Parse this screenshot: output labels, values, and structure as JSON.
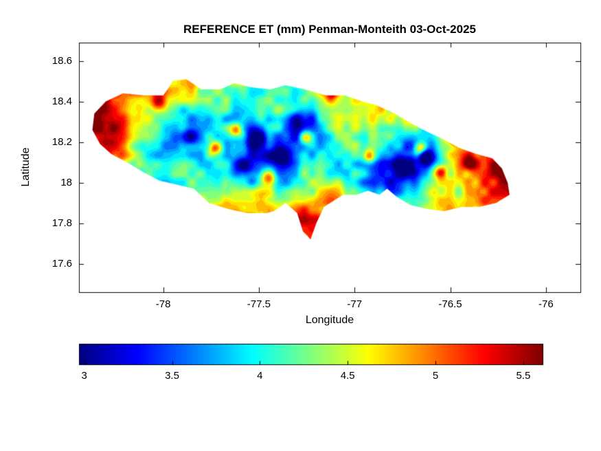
{
  "chart_data": {
    "type": "heatmap",
    "title": "REFERENCE ET (mm) Penman-Monteith 03-Oct-2025",
    "xlabel": "Longitude",
    "ylabel": "Latitude",
    "xlim": [
      -78.44,
      -75.82
    ],
    "ylim": [
      17.46,
      18.69
    ],
    "clim": [
      2.97,
      5.61
    ],
    "colormap": "jet",
    "background": "#ffffff",
    "axis_color": "#000000",
    "x_ticks": [
      -78,
      -77.5,
      -77,
      -76.5,
      -76
    ],
    "x_tick_labels": [
      "-78",
      "-77.5",
      "-77",
      "-76.5",
      "-76"
    ],
    "y_ticks": [
      17.6,
      17.8,
      18,
      18.2,
      18.4,
      18.6
    ],
    "y_tick_labels": [
      "17.6",
      "17.8",
      "18",
      "18.2",
      "18.4",
      "18.6"
    ],
    "colorbar": {
      "orientation": "horizontal",
      "ticks": [
        3,
        3.5,
        4,
        4.5,
        5,
        5.5
      ],
      "tick_labels": [
        "3",
        "3.5",
        "4",
        "4.5",
        "5",
        "5.5"
      ]
    },
    "grid": {
      "lon": [
        -78.4,
        -78.3,
        -78.2,
        -78.1,
        -78.0,
        -77.9,
        -77.8,
        -77.7,
        -77.6,
        -77.5,
        -77.4,
        -77.3,
        -77.2,
        -77.1,
        -77.0,
        -76.9,
        -76.8,
        -76.7,
        -76.6,
        -76.5,
        -76.4,
        -76.3,
        -76.2
      ],
      "lat": [
        18.5,
        18.4,
        18.3,
        18.2,
        18.1,
        18.0,
        17.9,
        17.8,
        17.7
      ],
      "values": [
        [
          4.6,
          4.7,
          4.8,
          4.8,
          4.7,
          4.6,
          4.5,
          4.4,
          4.3,
          4.4,
          4.5,
          4.4,
          4.5,
          4.6,
          4.7,
          4.8,
          4.9,
          5.0,
          4.9,
          4.8,
          4.8,
          4.9,
          5.0
        ],
        [
          5.2,
          5.3,
          5.0,
          4.8,
          4.5,
          4.2,
          4.1,
          4.2,
          4.0,
          4.1,
          4.2,
          4.1,
          4.3,
          4.4,
          4.5,
          4.6,
          4.8,
          5.0,
          4.6,
          4.5,
          4.9,
          5.0,
          5.1
        ],
        [
          5.4,
          5.5,
          5.2,
          4.6,
          4.2,
          3.9,
          3.7,
          3.8,
          3.6,
          3.7,
          3.9,
          3.6,
          3.8,
          4.1,
          4.3,
          4.4,
          4.5,
          4.3,
          4.2,
          4.6,
          5.0,
          5.2,
          5.3
        ],
        [
          5.3,
          5.4,
          5.0,
          4.4,
          4.0,
          3.7,
          3.5,
          3.6,
          3.4,
          3.5,
          3.6,
          3.4,
          3.7,
          4.0,
          4.2,
          4.0,
          3.6,
          3.3,
          3.6,
          4.4,
          5.0,
          5.3,
          5.4
        ],
        [
          5.0,
          4.9,
          4.6,
          4.2,
          3.9,
          3.8,
          3.7,
          3.9,
          3.6,
          3.5,
          3.4,
          3.6,
          3.9,
          4.1,
          4.0,
          3.4,
          3.1,
          3.0,
          3.4,
          4.2,
          4.9,
          5.3,
          5.5
        ],
        [
          4.7,
          4.6,
          4.4,
          4.2,
          4.1,
          4.0,
          4.1,
          4.2,
          4.0,
          3.8,
          3.7,
          4.0,
          4.3,
          4.4,
          4.2,
          3.6,
          3.3,
          3.5,
          4.0,
          4.4,
          4.8,
          5.2,
          5.4
        ],
        [
          4.6,
          4.5,
          4.4,
          4.4,
          4.3,
          4.4,
          4.5,
          4.7,
          4.8,
          4.7,
          4.6,
          4.8,
          4.9,
          4.7,
          4.5,
          4.2,
          4.0,
          4.2,
          4.4,
          4.6,
          4.9,
          5.1,
          5.2
        ],
        [
          4.6,
          4.6,
          4.6,
          4.6,
          4.6,
          4.7,
          4.8,
          4.9,
          5.0,
          5.0,
          4.9,
          5.1,
          5.0,
          4.8,
          4.7,
          4.6,
          4.5,
          4.6,
          4.7,
          4.8,
          4.9,
          5.0,
          5.1
        ],
        [
          4.7,
          4.7,
          4.7,
          4.7,
          4.8,
          4.8,
          4.9,
          5.0,
          5.1,
          5.2,
          5.1,
          5.2,
          5.1,
          5.0,
          4.9,
          4.8,
          4.7,
          4.8,
          4.8,
          4.9,
          5.0,
          5.0,
          5.1
        ]
      ]
    },
    "spots": [
      [
        -78.02,
        18.4,
        1.0,
        0.03
      ],
      [
        -77.62,
        18.26,
        1.3,
        0.025
      ],
      [
        -77.73,
        18.17,
        1.1,
        0.025
      ],
      [
        -77.45,
        18.03,
        1.4,
        0.03
      ],
      [
        -77.25,
        18.22,
        1.0,
        0.025
      ],
      [
        -76.92,
        18.13,
        1.3,
        0.025
      ],
      [
        -76.66,
        18.17,
        1.2,
        0.022
      ],
      [
        -76.55,
        18.05,
        1.2,
        0.022
      ],
      [
        -76.48,
        18.22,
        1.1,
        0.022
      ],
      [
        -77.12,
        18.44,
        0.9,
        0.025
      ],
      [
        -76.4,
        18.1,
        1.0,
        0.025
      ],
      [
        -77.52,
        18.22,
        -0.9,
        0.035
      ],
      [
        -77.38,
        18.13,
        -0.9,
        0.035
      ],
      [
        -76.73,
        18.07,
        -1.0,
        0.035
      ],
      [
        -76.62,
        18.12,
        -0.9,
        0.03
      ],
      [
        -77.58,
        18.08,
        -0.7,
        0.03
      ],
      [
        -77.86,
        18.23,
        -0.7,
        0.035
      ],
      [
        -77.3,
        18.3,
        -0.6,
        0.04
      ]
    ],
    "texture": {
      "fine_scale": 0.045,
      "fine_amp": 0.27,
      "coarse_scale": 0.13,
      "coarse_amp": 0.3,
      "quant_step": 0.1
    },
    "outline_lonlat": [
      [
        -78.37,
        18.26
      ],
      [
        -78.36,
        18.34
      ],
      [
        -78.3,
        18.4
      ],
      [
        -78.21,
        18.44
      ],
      [
        -78.1,
        18.43
      ],
      [
        -78.0,
        18.43
      ],
      [
        -77.97,
        18.47
      ],
      [
        -77.95,
        18.5
      ],
      [
        -77.88,
        18.51
      ],
      [
        -77.8,
        18.46
      ],
      [
        -77.7,
        18.46
      ],
      [
        -77.63,
        18.49
      ],
      [
        -77.54,
        18.47
      ],
      [
        -77.44,
        18.46
      ],
      [
        -77.36,
        18.48
      ],
      [
        -77.26,
        18.46
      ],
      [
        -77.15,
        18.43
      ],
      [
        -77.05,
        18.43
      ],
      [
        -76.96,
        18.4
      ],
      [
        -76.88,
        18.38
      ],
      [
        -76.79,
        18.34
      ],
      [
        -76.72,
        18.3
      ],
      [
        -76.64,
        18.26
      ],
      [
        -76.55,
        18.22
      ],
      [
        -76.45,
        18.17
      ],
      [
        -76.36,
        18.14
      ],
      [
        -76.28,
        18.12
      ],
      [
        -76.23,
        18.07
      ],
      [
        -76.2,
        18.0
      ],
      [
        -76.19,
        17.94
      ],
      [
        -76.26,
        17.9
      ],
      [
        -76.35,
        17.88
      ],
      [
        -76.44,
        17.88
      ],
      [
        -76.53,
        17.86
      ],
      [
        -76.62,
        17.87
      ],
      [
        -76.71,
        17.89
      ],
      [
        -76.78,
        17.93
      ],
      [
        -76.83,
        17.97
      ],
      [
        -76.87,
        17.94
      ],
      [
        -76.93,
        17.96
      ],
      [
        -76.99,
        17.94
      ],
      [
        -77.06,
        17.94
      ],
      [
        -77.16,
        17.88
      ],
      [
        -77.2,
        17.8
      ],
      [
        -77.23,
        17.72
      ],
      [
        -77.27,
        17.76
      ],
      [
        -77.3,
        17.85
      ],
      [
        -77.36,
        17.9
      ],
      [
        -77.42,
        17.86
      ],
      [
        -77.46,
        17.85
      ],
      [
        -77.56,
        17.85
      ],
      [
        -77.66,
        17.87
      ],
      [
        -77.76,
        17.9
      ],
      [
        -77.84,
        17.97
      ],
      [
        -77.93,
        17.99
      ],
      [
        -78.02,
        18.01
      ],
      [
        -78.1,
        18.05
      ],
      [
        -78.19,
        18.1
      ],
      [
        -78.27,
        18.14
      ],
      [
        -78.33,
        18.19
      ],
      [
        -78.37,
        18.26
      ]
    ]
  }
}
